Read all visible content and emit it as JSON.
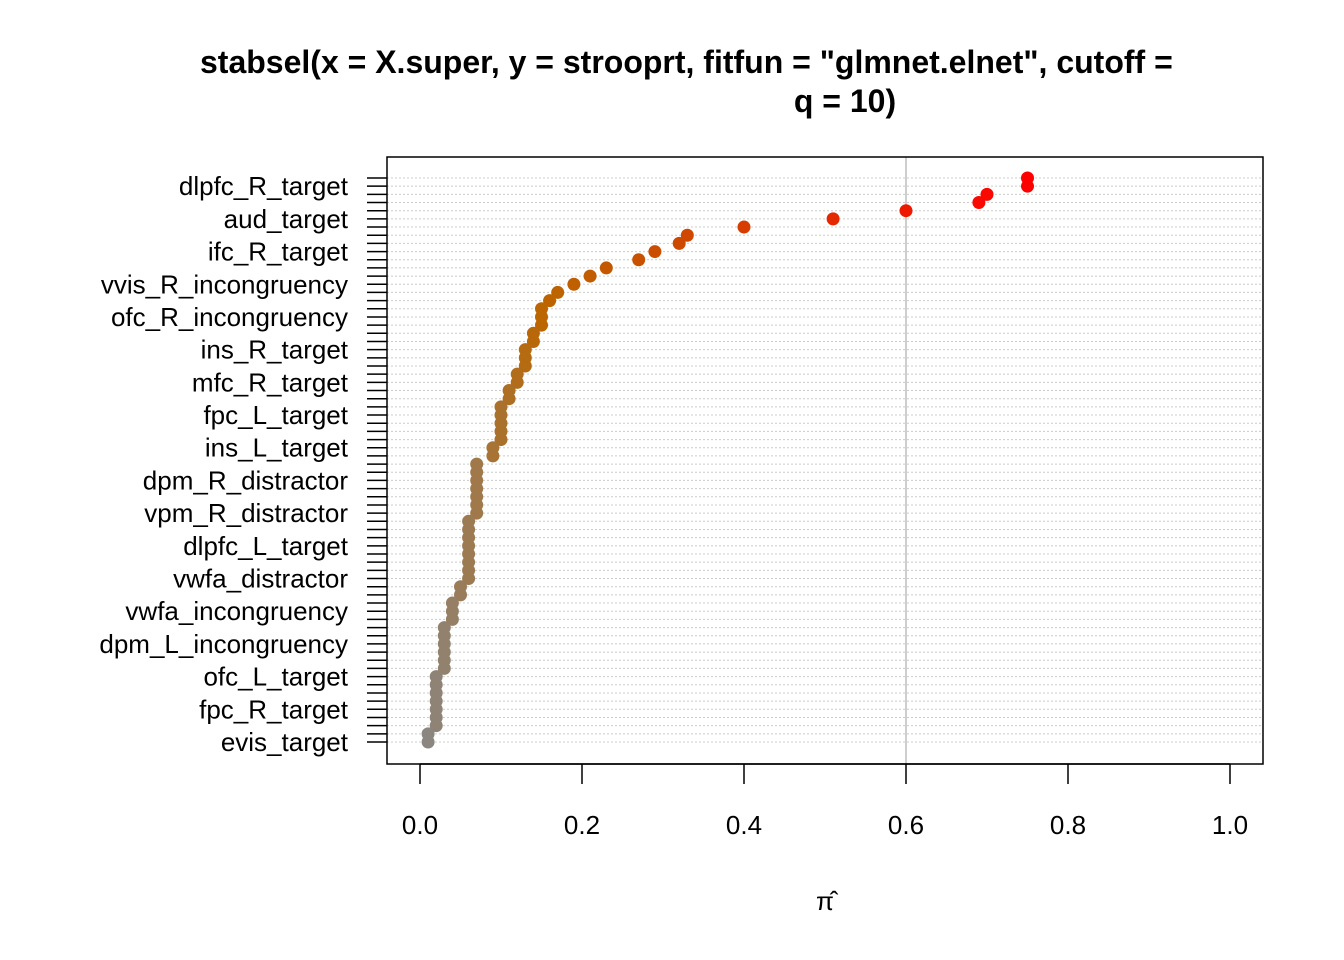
{
  "chart_data": {
    "type": "scatter",
    "title_lines": [
      "stabsel(x = X.super, y = strooprt, fitfun = \"glmnet.elnet\", cutoff =",
      "q = 10)"
    ],
    "xlabel": "π̂",
    "ylabel": "",
    "xlim": [
      0,
      1
    ],
    "x_ticks": [
      "0.0",
      "0.2",
      "0.4",
      "0.6",
      "0.8",
      "1.0"
    ],
    "cutoff_line": 0.6,
    "grid": true,
    "n_variables": 70,
    "y_labels": [
      "dlpfc_R_target",
      "aud_target",
      "ifc_R_target",
      "vvis_R_incongruency",
      "ofc_R_incongruency",
      "ins_R_target",
      "mfc_R_target",
      "fpc_L_target",
      "ins_L_target",
      "dpm_R_distractor",
      "vpm_R_distractor",
      "dlpfc_L_target",
      "vwfa_distractor",
      "vwfa_incongruency",
      "dpm_L_incongruency",
      "ofc_L_target",
      "fpc_R_target",
      "evis_target"
    ],
    "selection_probabilities": [
      0.75,
      0.75,
      0.7,
      0.69,
      0.6,
      0.51,
      0.4,
      0.33,
      0.32,
      0.29,
      0.27,
      0.23,
      0.21,
      0.19,
      0.17,
      0.16,
      0.15,
      0.15,
      0.15,
      0.14,
      0.14,
      0.13,
      0.13,
      0.13,
      0.12,
      0.12,
      0.11,
      0.11,
      0.1,
      0.1,
      0.1,
      0.1,
      0.1,
      0.09,
      0.09,
      0.07,
      0.07,
      0.07,
      0.07,
      0.07,
      0.07,
      0.07,
      0.06,
      0.06,
      0.06,
      0.06,
      0.06,
      0.06,
      0.06,
      0.06,
      0.05,
      0.05,
      0.04,
      0.04,
      0.04,
      0.03,
      0.03,
      0.03,
      0.03,
      0.03,
      0.03,
      0.02,
      0.02,
      0.02,
      0.02,
      0.02,
      0.02,
      0.02,
      0.01,
      0.01
    ],
    "colors": {
      "high": "#ff0000",
      "mid": "#bb6600",
      "low": "#888888",
      "grid": "#cccccc",
      "cutoff": "#bebebe",
      "frame": "#000000"
    }
  }
}
